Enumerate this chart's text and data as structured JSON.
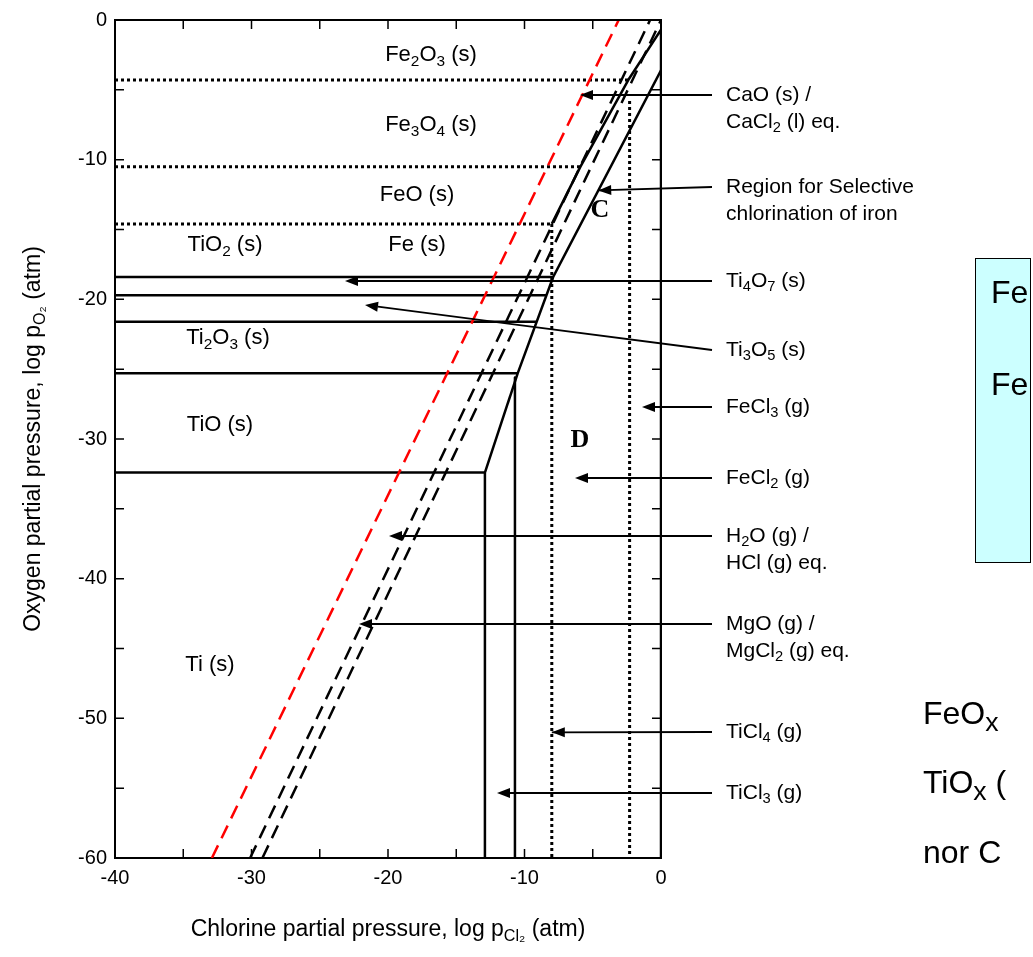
{
  "chart_data": {
    "type": "line",
    "xlabel": "Chlorine partial pressure, log p$_{Cl₂}$ (atm)",
    "ylabel": "Oxygen partial pressure, log p$_{O₂}$ (atm)",
    "xlim": [
      -40,
      0
    ],
    "ylim": [
      -60,
      0
    ],
    "xticks": [
      -40,
      {
        "value": -35,
        "label": null
      },
      -30,
      {
        "value": -25,
        "label": null
      },
      -20,
      {
        "value": -15,
        "label": null
      },
      -10,
      {
        "value": -5,
        "label": null
      },
      0
    ],
    "yticks": [
      -60,
      {
        "value": -55,
        "label": null
      },
      -50,
      {
        "value": -45,
        "label": null
      },
      -40,
      {
        "value": -35,
        "label": null
      },
      -30,
      {
        "value": -25,
        "label": null
      },
      -20,
      {
        "value": -15,
        "label": null
      },
      -10,
      {
        "value": -5,
        "label": null
      },
      0
    ],
    "marker": "none",
    "legend": false,
    "series": [
      {
        "color": "#ff0000",
        "line_style": "dashed",
        "x": [
          -32.9,
          -3.1
        ],
        "values": [
          -60,
          0
        ]
      },
      {
        "color": "#000000",
        "line_style": "dashed",
        "x": [
          -30.1,
          -0.8
        ],
        "values": [
          -60,
          0
        ]
      },
      {
        "color": "#000000",
        "line_style": "dashed",
        "x": [
          -29.2,
          0
        ],
        "values": [
          -60,
          0
        ]
      },
      {
        "color": "#000000",
        "line_style": "dotted",
        "x": [
          -40,
          -2.4
        ],
        "values": [
          -4.3,
          -4.3
        ]
      },
      {
        "color": "#000000",
        "line_style": "dotted",
        "x": [
          -40,
          -5.9
        ],
        "values": [
          -10.5,
          -10.5
        ]
      },
      {
        "color": "#000000",
        "line_style": "dotted",
        "x": [
          -40,
          -8.0
        ],
        "values": [
          -14.6,
          -14.6
        ]
      },
      {
        "color": "#000000",
        "line_style": "solid",
        "x": [
          -40,
          -7.9
        ],
        "values": [
          -18.4,
          -18.4
        ]
      },
      {
        "color": "#000000",
        "line_style": "solid",
        "x": [
          -40,
          -8.4
        ],
        "values": [
          -19.7,
          -19.7
        ]
      },
      {
        "color": "#000000",
        "line_style": "solid",
        "x": [
          -40,
          -9.1
        ],
        "values": [
          -21.6,
          -21.6
        ]
      },
      {
        "color": "#000000",
        "line_style": "solid",
        "x": [
          -40,
          -10.5
        ],
        "values": [
          -25.3,
          -25.3
        ]
      },
      {
        "color": "#000000",
        "line_style": "solid",
        "x": [
          -40,
          -12.9
        ],
        "values": [
          -32.4,
          -32.4
        ]
      },
      {
        "color": "#000000",
        "line_style": "solid",
        "x": [
          -12.9,
          -12.9,
          -10.5,
          -7.9,
          0
        ],
        "values": [
          -60,
          -32.4,
          -25.3,
          -18.4,
          -3.6
        ]
      },
      {
        "color": "#000000",
        "line_style": "solid",
        "x": [
          -8.0,
          -5.9,
          -2.4,
          0,
          0
        ],
        "values": [
          -14.6,
          -10.5,
          -4.3,
          -0.7,
          -60
        ]
      },
      {
        "color": "#000000",
        "line_style": "solid",
        "x": [
          -10.7,
          -10.7
        ],
        "values": [
          -25.6,
          -60
        ]
      },
      {
        "color": "#000000",
        "line_style": "dotted",
        "x": [
          -8.0,
          -8.0
        ],
        "values": [
          -14.6,
          -60
        ]
      },
      {
        "color": "#000000",
        "line_style": "dotted",
        "x": [
          -2.3,
          -2.3
        ],
        "values": [
          -5.8,
          -60
        ]
      }
    ],
    "annotations": [
      "Fe\nFe",
      "FeO$_{x}$\nTiO$_{x}$ (\nnor C",
      "Fe$_{2}$O$_{3}$ (s)",
      "Fe$_{3}$O$_{4}$ (s)",
      "FeO (s)",
      "Fe (s)",
      "TiO$_{2}$ (s)",
      "Ti$_{2}$O$_{3}$ (s)",
      "TiO (s)",
      "Ti (s)",
      "C",
      "D",
      "CaO (s) /\nCaCl$_{2}$ (l) eq.",
      {
        "text": "Region for Selective\nchlorination of iron",
        "x": -4.6,
        "y": -12.2
      },
      "Ti$_{4}$O$_{7}$ (s)",
      "Ti$_{3}$O$_{5}$ (s)",
      "FeCl$_{3}$ (g)",
      "FeCl$_{2}$ (g)",
      "H$_{2}$O (g) /\nHCl (g) eq.",
      "MgO (g) /\nMgCl$_{2}$ (g) eq.",
      {
        "text": "TiCl$_{4}$ (g)",
        "x": -8.0,
        "y": -51.0
      },
      "TiCl$_{3}$ (g)"
    ]
  }
}
